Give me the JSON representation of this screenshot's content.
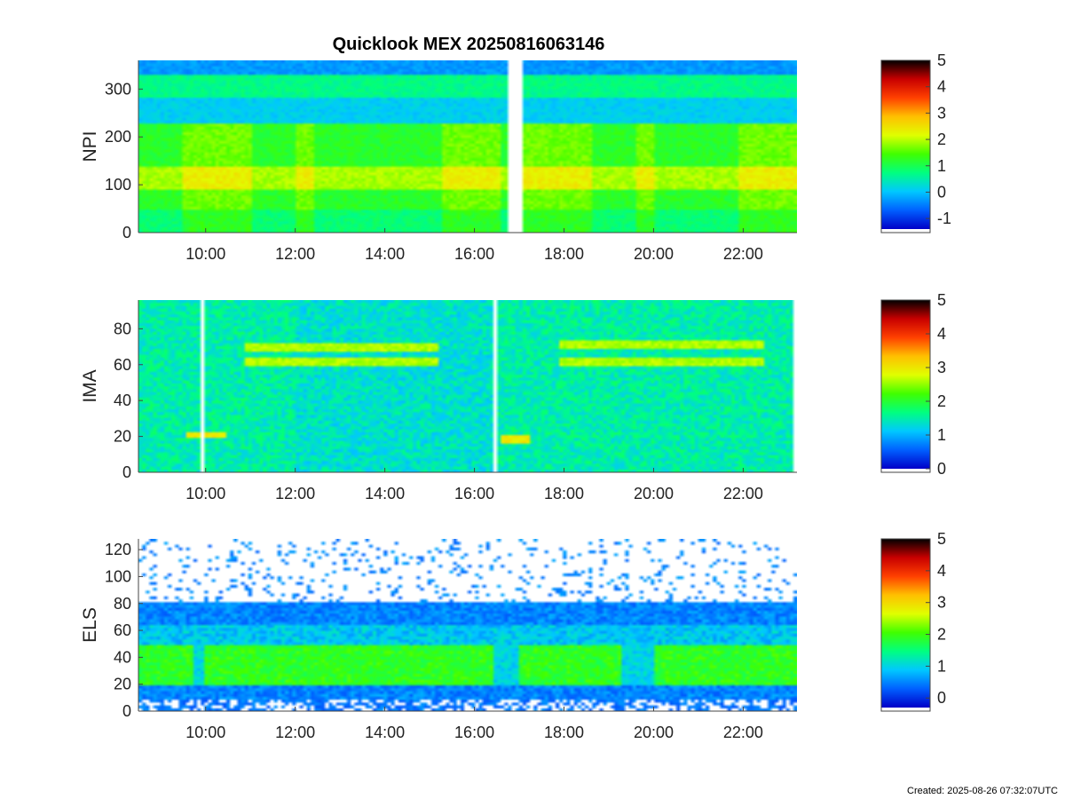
{
  "title": "Quicklook MEX 20250816063146",
  "footer": "Created: 2025-08-26 07:32:07UTC",
  "colormap": [
    "#0000c8",
    "#0060ff",
    "#00c8ff",
    "#00ff80",
    "#40ff00",
    "#e0ff00",
    "#ffc000",
    "#ff4000",
    "#c80000",
    "#000000"
  ],
  "chart_data": [
    {
      "type": "heatmap",
      "panel": "NPI",
      "ylabel": "NPI",
      "ylim": [
        0,
        360
      ],
      "yticks": [
        0,
        100,
        200,
        300
      ],
      "ytick_labels": [
        "0",
        "100",
        "200",
        "300"
      ],
      "xlim_hours": [
        8.5,
        23.2
      ],
      "xticks_hours": [
        10,
        12,
        14,
        16,
        18,
        20,
        22
      ],
      "xtick_labels": [
        "10:00",
        "12:00",
        "14:00",
        "16:00",
        "18:00",
        "20:00",
        "22:00"
      ],
      "data_gaps_hours": [
        [
          16.75,
          17.08
        ]
      ],
      "data_end_hours": 23.2,
      "colorbar": {
        "range": [
          -1.4,
          5
        ],
        "ticks": [
          -1,
          0,
          1,
          2,
          3,
          4,
          5
        ],
        "tick_labels": [
          "-1",
          "0",
          "1",
          "2",
          "3",
          "4",
          "5"
        ]
      },
      "bands": [
        {
          "y_range": [
            0,
            50
          ],
          "value": 0.8
        },
        {
          "y_range": [
            50,
            90
          ],
          "value": 1.2
        },
        {
          "y_range": [
            90,
            140
          ],
          "value": 1.9
        },
        {
          "y_range": [
            140,
            230
          ],
          "value": 1.2
        },
        {
          "y_range": [
            230,
            280
          ],
          "value": 0.1
        },
        {
          "y_range": [
            280,
            330
          ],
          "value": 0.7
        },
        {
          "y_range": [
            330,
            360
          ],
          "value": -0.3
        }
      ],
      "enhanced_periods_hours": [
        [
          9.5,
          11.0
        ],
        [
          12.0,
          12.4
        ],
        [
          15.3,
          16.6
        ],
        [
          17.1,
          18.6
        ],
        [
          19.6,
          20.0
        ],
        [
          21.9,
          23.2
        ]
      ]
    },
    {
      "type": "heatmap",
      "panel": "IMA",
      "ylabel": "IMA",
      "ylim": [
        0,
        96
      ],
      "yticks": [
        0,
        20,
        40,
        60,
        80
      ],
      "ytick_labels": [
        "0",
        "20",
        "40",
        "60",
        "80"
      ],
      "xlim_hours": [
        8.5,
        23.2
      ],
      "xticks_hours": [
        10,
        12,
        14,
        16,
        18,
        20,
        22
      ],
      "xtick_labels": [
        "10:00",
        "12:00",
        "14:00",
        "16:00",
        "18:00",
        "20:00",
        "22:00"
      ],
      "data_gaps_hours": [
        [
          9.88,
          10.0
        ],
        [
          16.42,
          16.5
        ]
      ],
      "data_end_hours": 23.1,
      "colorbar": {
        "range": [
          0,
          5
        ],
        "ticks": [
          0,
          1,
          2,
          3,
          4,
          5
        ],
        "tick_labels": [
          "0",
          "1",
          "2",
          "3",
          "4",
          "5"
        ]
      },
      "background_value": 1.5,
      "features": [
        {
          "kind": "line",
          "hours": [
            10.9,
            15.2
          ],
          "y": 70,
          "value": 2.6
        },
        {
          "kind": "line",
          "hours": [
            10.9,
            15.2
          ],
          "y": 62,
          "value": 2.6
        },
        {
          "kind": "line",
          "hours": [
            17.9,
            22.5
          ],
          "y": 71,
          "value": 2.6
        },
        {
          "kind": "line",
          "hours": [
            17.9,
            22.5
          ],
          "y": 62,
          "value": 2.6
        },
        {
          "kind": "line",
          "hours": [
            9.55,
            9.88
          ],
          "y": 21,
          "value": 3.0
        },
        {
          "kind": "line",
          "hours": [
            10.0,
            10.45
          ],
          "y": 21,
          "value": 3.0
        },
        {
          "kind": "line",
          "hours": [
            16.6,
            17.25
          ],
          "y": 19,
          "value": 3.0
        }
      ]
    },
    {
      "type": "heatmap",
      "panel": "ELS",
      "ylabel": "ELS",
      "ylim": [
        0,
        128
      ],
      "yticks": [
        0,
        20,
        40,
        60,
        80,
        100,
        120
      ],
      "ytick_labels": [
        "0",
        "20",
        "40",
        "60",
        "80",
        "100",
        "120"
      ],
      "xlim_hours": [
        8.5,
        23.2
      ],
      "xticks_hours": [
        10,
        12,
        14,
        16,
        18,
        20,
        22
      ],
      "xtick_labels": [
        "10:00",
        "12:00",
        "14:00",
        "16:00",
        "18:00",
        "20:00",
        "22:00"
      ],
      "data_gaps_hours": [],
      "data_end_hours": 23.2,
      "colorbar": {
        "range": [
          -0.3,
          5
        ],
        "ticks": [
          0,
          1,
          2,
          3,
          4,
          5
        ],
        "tick_labels": [
          "0",
          "1",
          "2",
          "3",
          "4",
          "5"
        ]
      },
      "core_y_range": [
        20,
        50
      ],
      "core_value": 1.9,
      "noise_threshold_y": 80,
      "dips_hours": [
        [
          9.7,
          10.0
        ],
        [
          16.4,
          17.0
        ],
        [
          19.3,
          20.0
        ]
      ]
    }
  ]
}
